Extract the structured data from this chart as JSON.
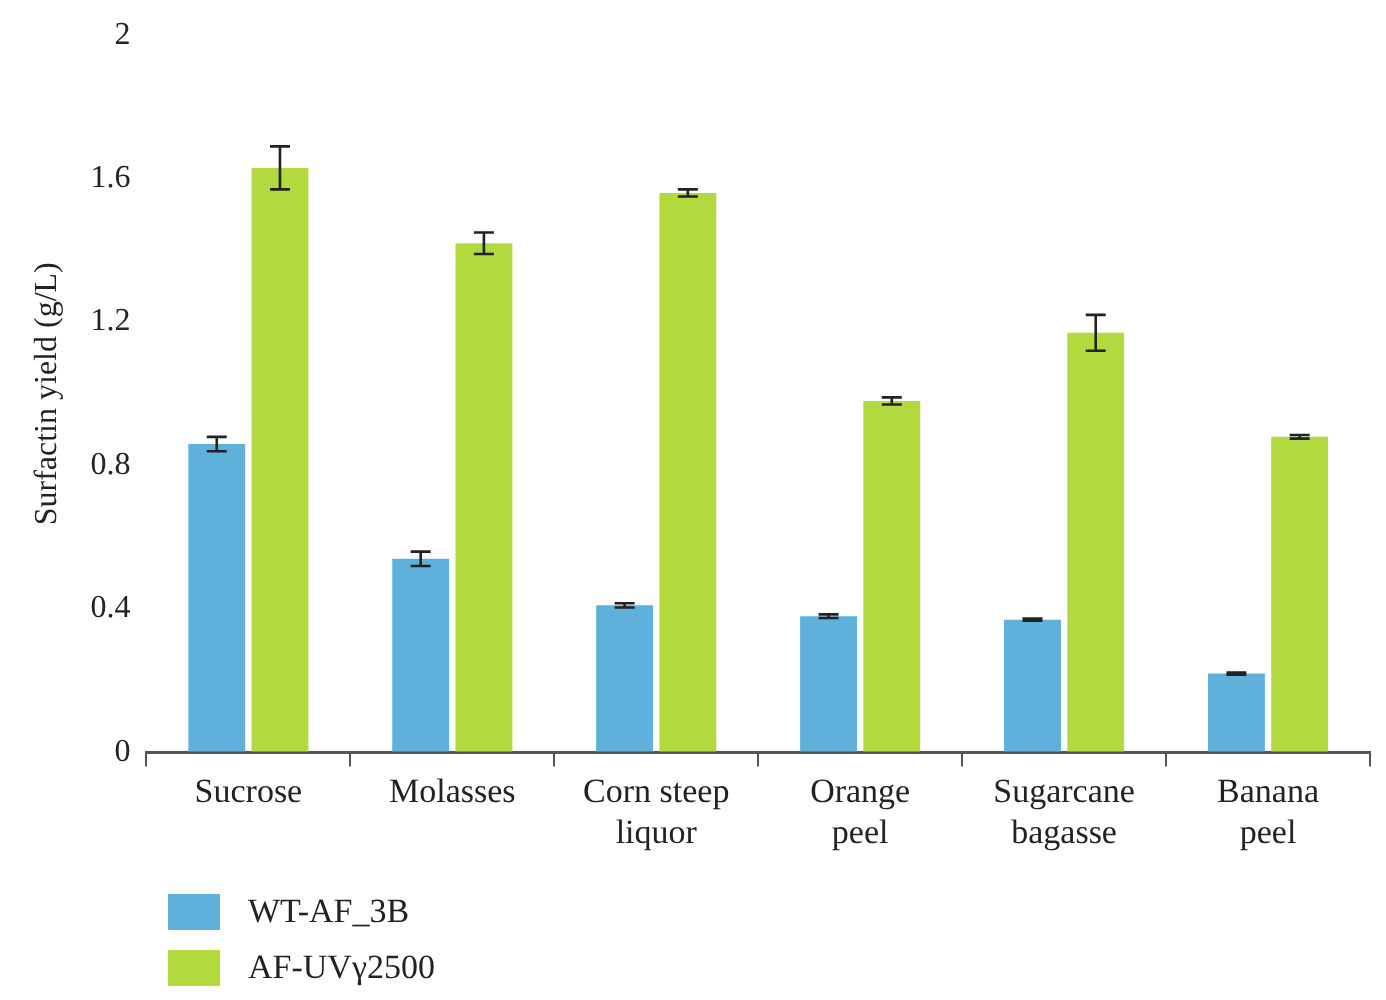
{
  "chart_data": {
    "type": "bar",
    "ylabel": "Surfactin yield (g/L)",
    "categories": [
      "Sucrose",
      "Molasses",
      "Corn steep liquor",
      "Orange peel",
      "Sugarcane bagasse",
      "Banana peel"
    ],
    "series": [
      {
        "name": "WT-AF_3B",
        "color": "#5fb0da",
        "values": [
          0.86,
          0.54,
          0.41,
          0.38,
          0.37,
          0.22
        ],
        "errors": [
          0.02,
          0.02,
          0.006,
          0.005,
          0.003,
          0.003
        ]
      },
      {
        "name": "AF-UVγ2500",
        "color": "#b2da3f",
        "values": [
          1.63,
          1.42,
          1.56,
          0.98,
          1.17,
          0.88
        ],
        "errors": [
          0.06,
          0.03,
          0.01,
          0.01,
          0.05,
          0.005
        ]
      }
    ],
    "ylim": [
      0,
      2
    ],
    "yticks": [
      0,
      0.4,
      0.8,
      1.2,
      1.6,
      2
    ],
    "grid": false,
    "legend": "bottom left"
  }
}
